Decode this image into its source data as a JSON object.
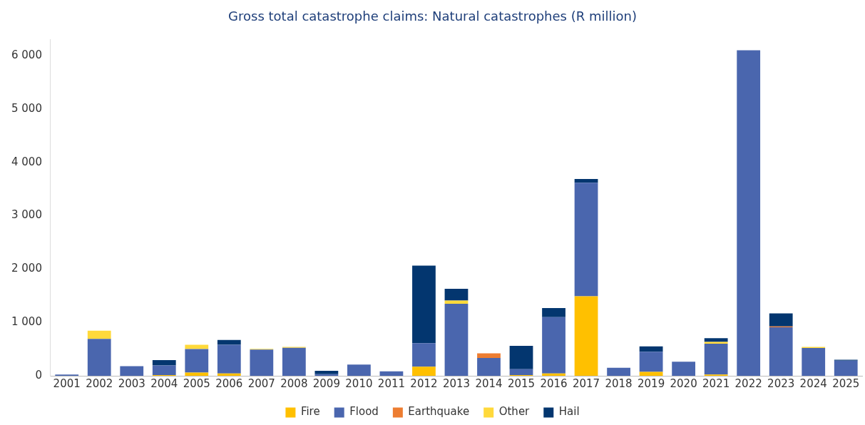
{
  "chart_data": {
    "type": "bar",
    "title": "Gross total catastrophe claims: Natural catastrophes (R million)",
    "categories": [
      "2001",
      "2002",
      "2003",
      "2004",
      "2005",
      "2006",
      "2007",
      "2008",
      "2009",
      "2010",
      "2011",
      "2012",
      "2013",
      "2014",
      "2015",
      "2016",
      "2017",
      "2018",
      "2019",
      "2020",
      "2021",
      "2022",
      "2023",
      "2024",
      "2025"
    ],
    "stacked": true,
    "series": [
      {
        "name": "Fire",
        "color": "#ffc000",
        "values": [
          null,
          null,
          null,
          15,
          60,
          45,
          null,
          null,
          null,
          null,
          null,
          170,
          null,
          null,
          15,
          45,
          1490,
          null,
          75,
          null,
          25,
          null,
          null,
          null,
          null
        ]
      },
      {
        "name": "Flood",
        "color": "#4a66ae",
        "values": [
          25,
          690,
          180,
          180,
          440,
          535,
          490,
          525,
          30,
          210,
          85,
          440,
          1350,
          335,
          110,
          1055,
          2130,
          150,
          375,
          265,
          575,
          6100,
          910,
          520,
          285
        ]
      },
      {
        "name": "Earthquake",
        "color": "#ed7d31",
        "values": [
          null,
          null,
          null,
          null,
          null,
          null,
          null,
          null,
          null,
          null,
          null,
          null,
          null,
          85,
          null,
          null,
          null,
          null,
          null,
          null,
          null,
          null,
          15,
          null,
          null
        ]
      },
      {
        "name": "Other",
        "color": "#ffd93b",
        "values": [
          null,
          155,
          null,
          null,
          80,
          null,
          15,
          15,
          null,
          null,
          null,
          null,
          60,
          null,
          null,
          null,
          null,
          null,
          null,
          null,
          35,
          null,
          null,
          20,
          null
        ]
      },
      {
        "name": "Hail",
        "color": "#03366f",
        "values": [
          null,
          null,
          null,
          100,
          null,
          90,
          null,
          null,
          65,
          null,
          null,
          1455,
          220,
          null,
          435,
          170,
          70,
          null,
          100,
          null,
          70,
          null,
          245,
          null,
          15
        ]
      }
    ],
    "ylim": [
      0,
      6300
    ],
    "yticks": [
      {
        "value": 0,
        "label": "0"
      },
      {
        "value": 1000,
        "label": "1 000"
      },
      {
        "value": 2000,
        "label": "2 000"
      },
      {
        "value": 3000,
        "label": "3 000"
      },
      {
        "value": 4000,
        "label": "4 000"
      },
      {
        "value": 5000,
        "label": "5 000"
      },
      {
        "value": 6000,
        "label": "6 000"
      }
    ],
    "grid": false,
    "legend": "bottom"
  }
}
